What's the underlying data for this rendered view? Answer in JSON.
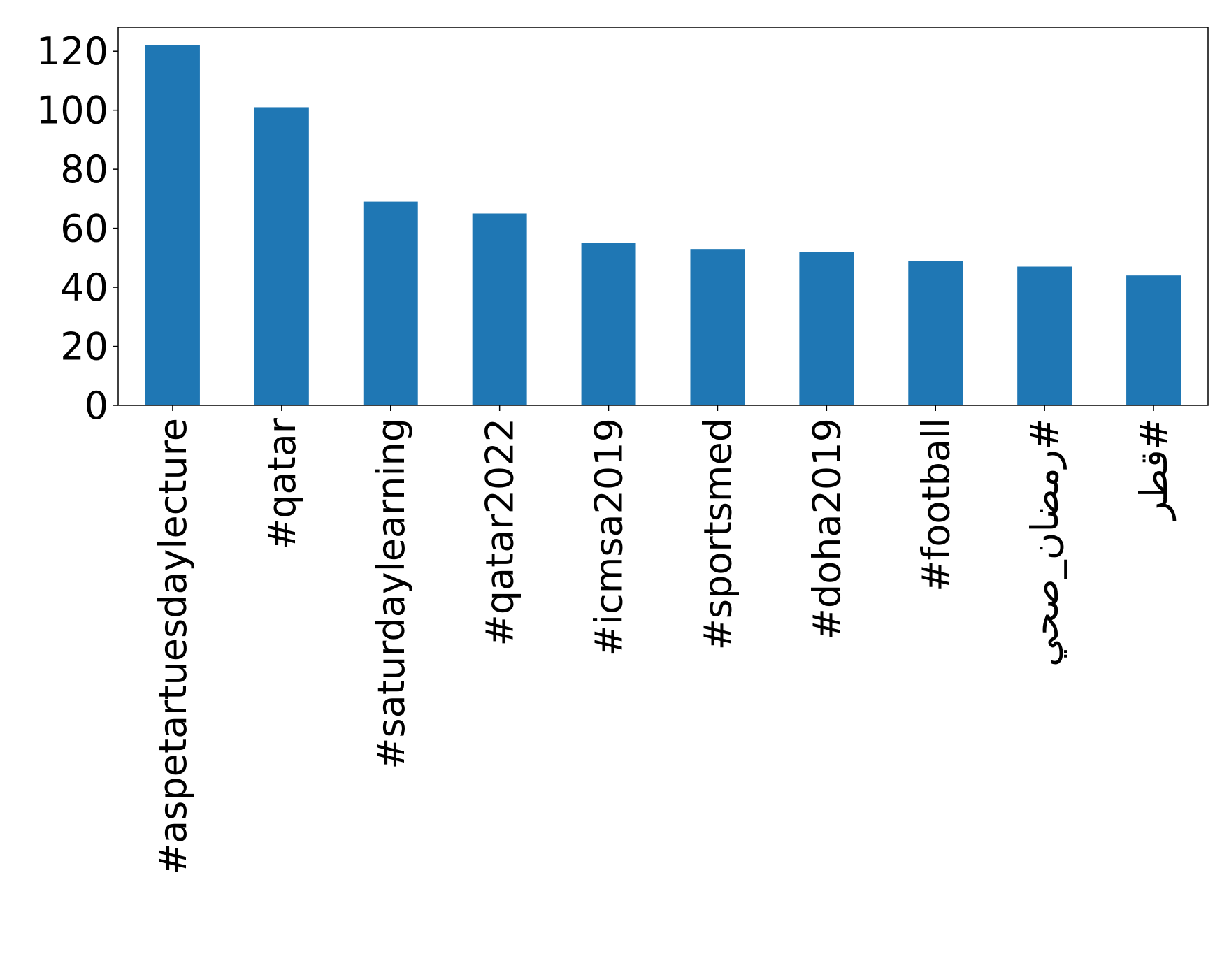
{
  "chart_data": {
    "type": "bar",
    "categories": [
      "#aspetartuesdaylecture",
      "#qatar",
      "#saturdaylearning",
      "#qatar2022",
      "#icmsa2019",
      "#sportsmed",
      "#doha2019",
      "#football",
      "#رمضان_صحي",
      "#قطر"
    ],
    "values": [
      122,
      101,
      69,
      65,
      55,
      53,
      52,
      49,
      47,
      44
    ],
    "color": "#1f77b4",
    "ylim": [
      0,
      128.1
    ],
    "yticks": [
      0,
      20,
      40,
      60,
      80,
      100,
      120
    ],
    "grid": false
  }
}
